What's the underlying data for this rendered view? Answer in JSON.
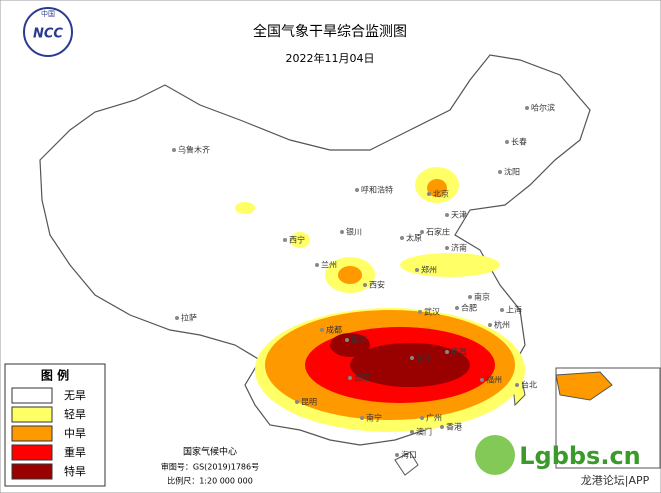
{
  "header": {
    "title": "全国气象干旱综合监测图",
    "date": "2022年11月04日"
  },
  "logo": {
    "top": "中国",
    "name": "NCC"
  },
  "cities": [
    "哈尔滨",
    "长春",
    "沈阳",
    "乌鲁木齐",
    "呼和浩特",
    "北京",
    "天津",
    "石家庄",
    "太原",
    "银川",
    "西宁",
    "兰州",
    "济南",
    "郑州",
    "西安",
    "南京",
    "上海",
    "合肥",
    "武汉",
    "杭州",
    "成都",
    "重庆",
    "拉萨",
    "长沙",
    "南昌",
    "贵阳",
    "福州",
    "台北",
    "昆明",
    "南宁",
    "广州",
    "澳门",
    "香港",
    "海口"
  ],
  "legend": {
    "title": "图 例",
    "items": [
      {
        "label": "无旱",
        "color": "#ffffff"
      },
      {
        "label": "轻旱",
        "color": "#ffff66"
      },
      {
        "label": "中旱",
        "color": "#ff9900"
      },
      {
        "label": "重旱",
        "color": "#ff0000"
      },
      {
        "label": "特旱",
        "color": "#990000"
      }
    ]
  },
  "footer": {
    "org": "国家气候中心",
    "approval": "审图号：GS(2019)1786号",
    "scale": "比例尺：1:20 000 000"
  },
  "watermark": {
    "site": "Lgbbs.cn",
    "app": "龙港论坛|APP"
  }
}
